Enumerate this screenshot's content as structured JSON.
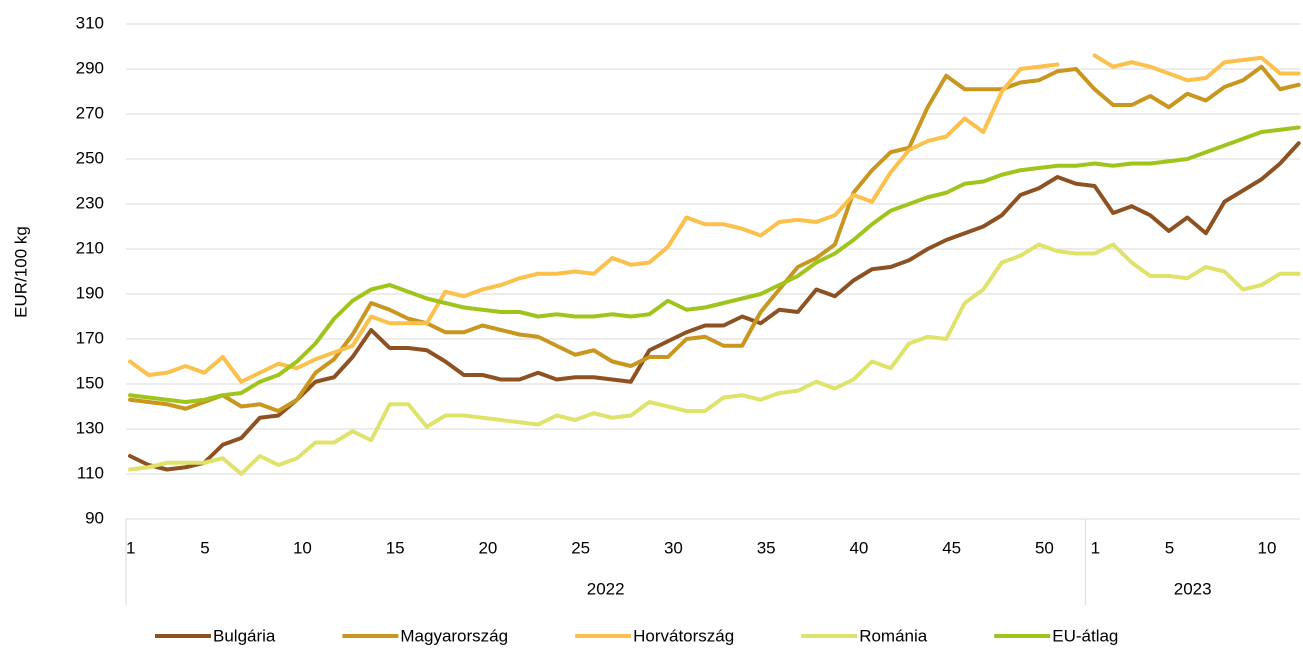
{
  "chart_data": {
    "type": "line",
    "y_label": "EUR/100 kg",
    "categories": [
      "1",
      null,
      null,
      null,
      "5",
      null,
      null,
      null,
      null,
      "10",
      null,
      null,
      null,
      null,
      "15",
      null,
      null,
      null,
      null,
      "20",
      null,
      null,
      null,
      null,
      "25",
      null,
      null,
      null,
      null,
      "30",
      null,
      null,
      null,
      null,
      "35",
      null,
      null,
      null,
      null,
      "40",
      null,
      null,
      null,
      null,
      "45",
      null,
      null,
      null,
      null,
      "50",
      null,
      null,
      "1",
      null,
      null,
      null,
      "5",
      null,
      null,
      null,
      null,
      "10",
      null,
      null
    ],
    "x_groups": [
      "2022",
      "2023"
    ],
    "ylim": [
      90,
      310
    ],
    "yticks": [
      90,
      110,
      130,
      150,
      170,
      190,
      210,
      230,
      250,
      270,
      290,
      310
    ],
    "grid": true,
    "legend": "bottom",
    "series": [
      {
        "name": "Bulgária",
        "color": "#8e5222",
        "values": [
          118,
          114,
          112,
          113,
          115,
          123,
          126,
          135,
          136,
          143,
          151,
          153,
          162,
          174,
          166,
          166,
          165,
          160,
          154,
          154,
          152,
          152,
          155,
          152,
          153,
          153,
          152,
          151,
          165,
          169,
          173,
          176,
          176,
          180,
          177,
          183,
          182,
          192,
          189,
          196,
          201,
          202,
          205,
          210,
          214,
          217,
          220,
          225,
          234,
          237,
          242,
          239,
          238,
          226,
          229,
          225,
          218,
          224,
          217,
          231,
          236,
          241,
          248,
          257
        ]
      },
      {
        "name": "Magyarország",
        "color": "#c9961f",
        "values": [
          143,
          142,
          141,
          139,
          142,
          145,
          140,
          141,
          138,
          143,
          155,
          161,
          172,
          186,
          183,
          179,
          177,
          173,
          173,
          176,
          174,
          172,
          171,
          167,
          163,
          165,
          160,
          158,
          162,
          162,
          170,
          171,
          167,
          167,
          182,
          192,
          202,
          206,
          212,
          235,
          245,
          253,
          255,
          273,
          287,
          281,
          281,
          281,
          284,
          285,
          289,
          290,
          281,
          274,
          274,
          278,
          273,
          279,
          276,
          282,
          285,
          291,
          281,
          283
        ]
      },
      {
        "name": "Horvátország",
        "color": "#fcc04c",
        "values": [
          160,
          154,
          155,
          158,
          155,
          162,
          151,
          155,
          159,
          157,
          161,
          164,
          167,
          180,
          177,
          177,
          177,
          191,
          189,
          192,
          194,
          197,
          199,
          199,
          200,
          199,
          206,
          203,
          204,
          211,
          224,
          221,
          221,
          219,
          216,
          222,
          223,
          222,
          225,
          234,
          231,
          244,
          254,
          258,
          260,
          268,
          262,
          280,
          290,
          291,
          292,
          null,
          296,
          291,
          293,
          291,
          288,
          285,
          286,
          293,
          294,
          295,
          288,
          288
        ]
      },
      {
        "name": "Románia",
        "color": "#dfe36b",
        "values": [
          112,
          113,
          115,
          115,
          115,
          117,
          110,
          118,
          114,
          117,
          124,
          124,
          129,
          125,
          141,
          141,
          131,
          136,
          136,
          135,
          134,
          133,
          132,
          136,
          134,
          137,
          135,
          136,
          142,
          140,
          138,
          138,
          144,
          145,
          143,
          146,
          147,
          151,
          148,
          152,
          160,
          157,
          168,
          171,
          170,
          186,
          192,
          204,
          207,
          212,
          209,
          208,
          208,
          212,
          204,
          198,
          198,
          197,
          202,
          200,
          192,
          194,
          199,
          199
        ]
      },
      {
        "name": "EU-átlag",
        "color": "#9fc41b",
        "values": [
          145,
          144,
          143,
          142,
          143,
          145,
          146,
          151,
          154,
          160,
          168,
          179,
          187,
          192,
          194,
          191,
          188,
          186,
          184,
          183,
          182,
          182,
          180,
          181,
          180,
          180,
          181,
          180,
          181,
          187,
          183,
          184,
          186,
          188,
          190,
          194,
          198,
          204,
          208,
          214,
          221,
          227,
          230,
          233,
          235,
          239,
          240,
          243,
          245,
          246,
          247,
          247,
          248,
          247,
          248,
          248,
          249,
          250,
          253,
          256,
          259,
          262,
          263,
          264
        ]
      }
    ]
  }
}
